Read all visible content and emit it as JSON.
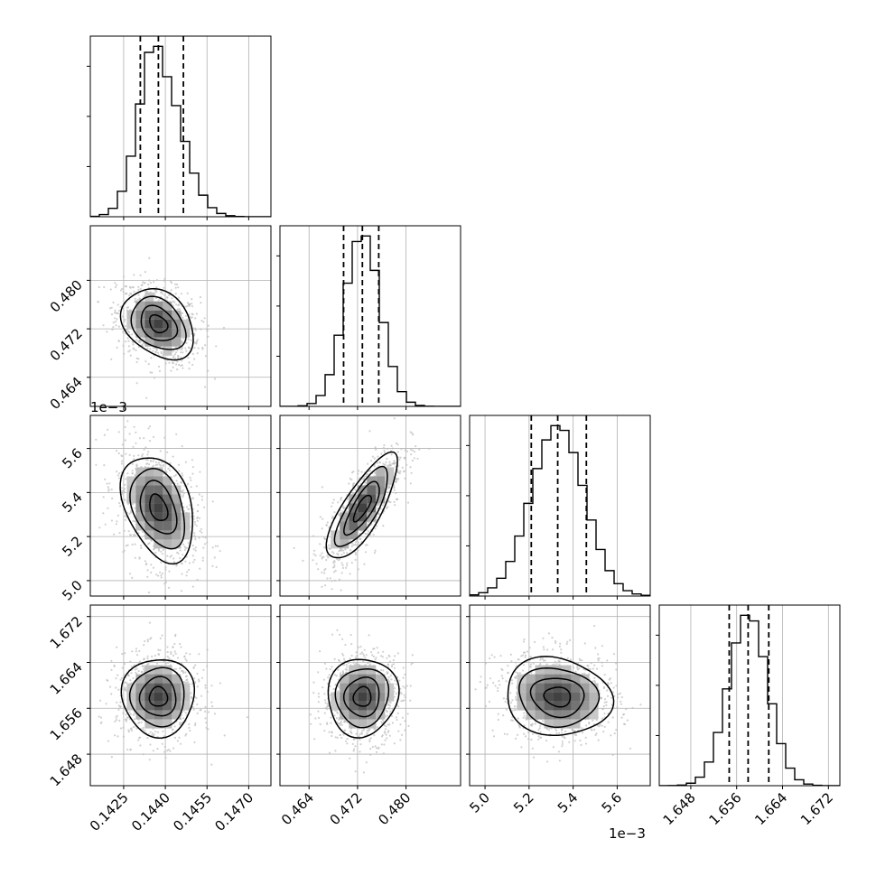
{
  "chart_data": {
    "type": "corner",
    "grid": true,
    "parameters": [
      {
        "name": "",
        "median": 0.14375,
        "q16": 0.1431,
        "q84": 0.14465,
        "sigma": 0.00065,
        "range": [
          0.1413,
          0.1478
        ],
        "ticks": [
          0.1425,
          0.144,
          0.1455,
          0.147
        ],
        "tick_labels": [
          "0.1425",
          "0.1440",
          "0.1455",
          "0.1470"
        ],
        "offset_text": ""
      },
      {
        "name": "",
        "median": 0.4728,
        "q16": 0.4697,
        "q84": 0.4755,
        "sigma": 0.0029,
        "range": [
          0.4592,
          0.489
        ],
        "ticks": [
          0.464,
          0.472,
          0.48
        ],
        "tick_labels": [
          "0.464",
          "0.472",
          "0.480"
        ],
        "offset_text": ""
      },
      {
        "name": "",
        "median": 5.33,
        "q16": 5.21,
        "q84": 5.46,
        "sigma": 0.12,
        "range": [
          4.93,
          5.75
        ],
        "ticks": [
          5.0,
          5.2,
          5.4,
          5.6
        ],
        "tick_labels": [
          "5.0",
          "5.2",
          "5.4",
          "5.6"
        ],
        "offset_text": "1e−3"
      },
      {
        "name": "",
        "median": 1.658,
        "q16": 1.6547,
        "q84": 1.6616,
        "sigma": 0.0034,
        "range": [
          1.6425,
          1.674
        ],
        "ticks": [
          1.648,
          1.656,
          1.664,
          1.672
        ],
        "tick_labels": [
          "1.648",
          "1.656",
          "1.664",
          "1.672"
        ],
        "offset_text": ""
      }
    ],
    "correlations": {
      "1-0": -0.3,
      "2-0": -0.35,
      "2-1": 0.78,
      "3-0": 0.0,
      "3-1": 0.05,
      "3-2": -0.1
    },
    "histogram_bins": 20,
    "contour_levels": [
      0.5,
      1.0,
      1.5,
      2.0
    ],
    "quantile_lines": "dashed",
    "colors": {
      "line": "#000000",
      "points": "#bdbdbd",
      "grid": "#b0b0b0"
    }
  }
}
